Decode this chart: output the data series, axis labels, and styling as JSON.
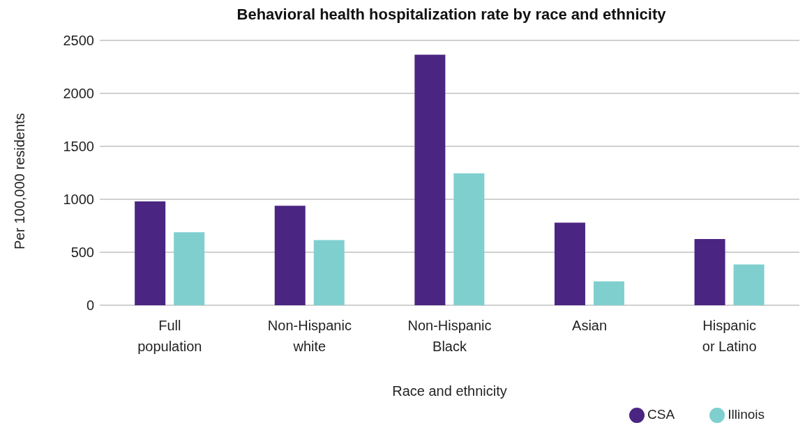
{
  "chart_data": {
    "type": "bar",
    "title": "Behavioral health hospitalization rate by race and ethnicity",
    "xlabel": "Race and ethnicity",
    "ylabel": "Per 100,000 residents",
    "categories": [
      "Full population",
      "Non-Hispanic white",
      "Non-Hispanic Black",
      "Asian",
      "Hispanic or Latino"
    ],
    "series": [
      {
        "name": "CSA",
        "color": "#4a2582",
        "values": [
          980,
          940,
          2365,
          780,
          625
        ]
      },
      {
        "name": "Illinois",
        "color": "#7fcfcf",
        "values": [
          690,
          615,
          1245,
          225,
          385
        ]
      }
    ],
    "ylim": [
      0,
      2500
    ],
    "yticks": [
      0,
      500,
      1000,
      1500,
      2000,
      2500
    ],
    "grid": "y",
    "legend": "bottom right"
  }
}
